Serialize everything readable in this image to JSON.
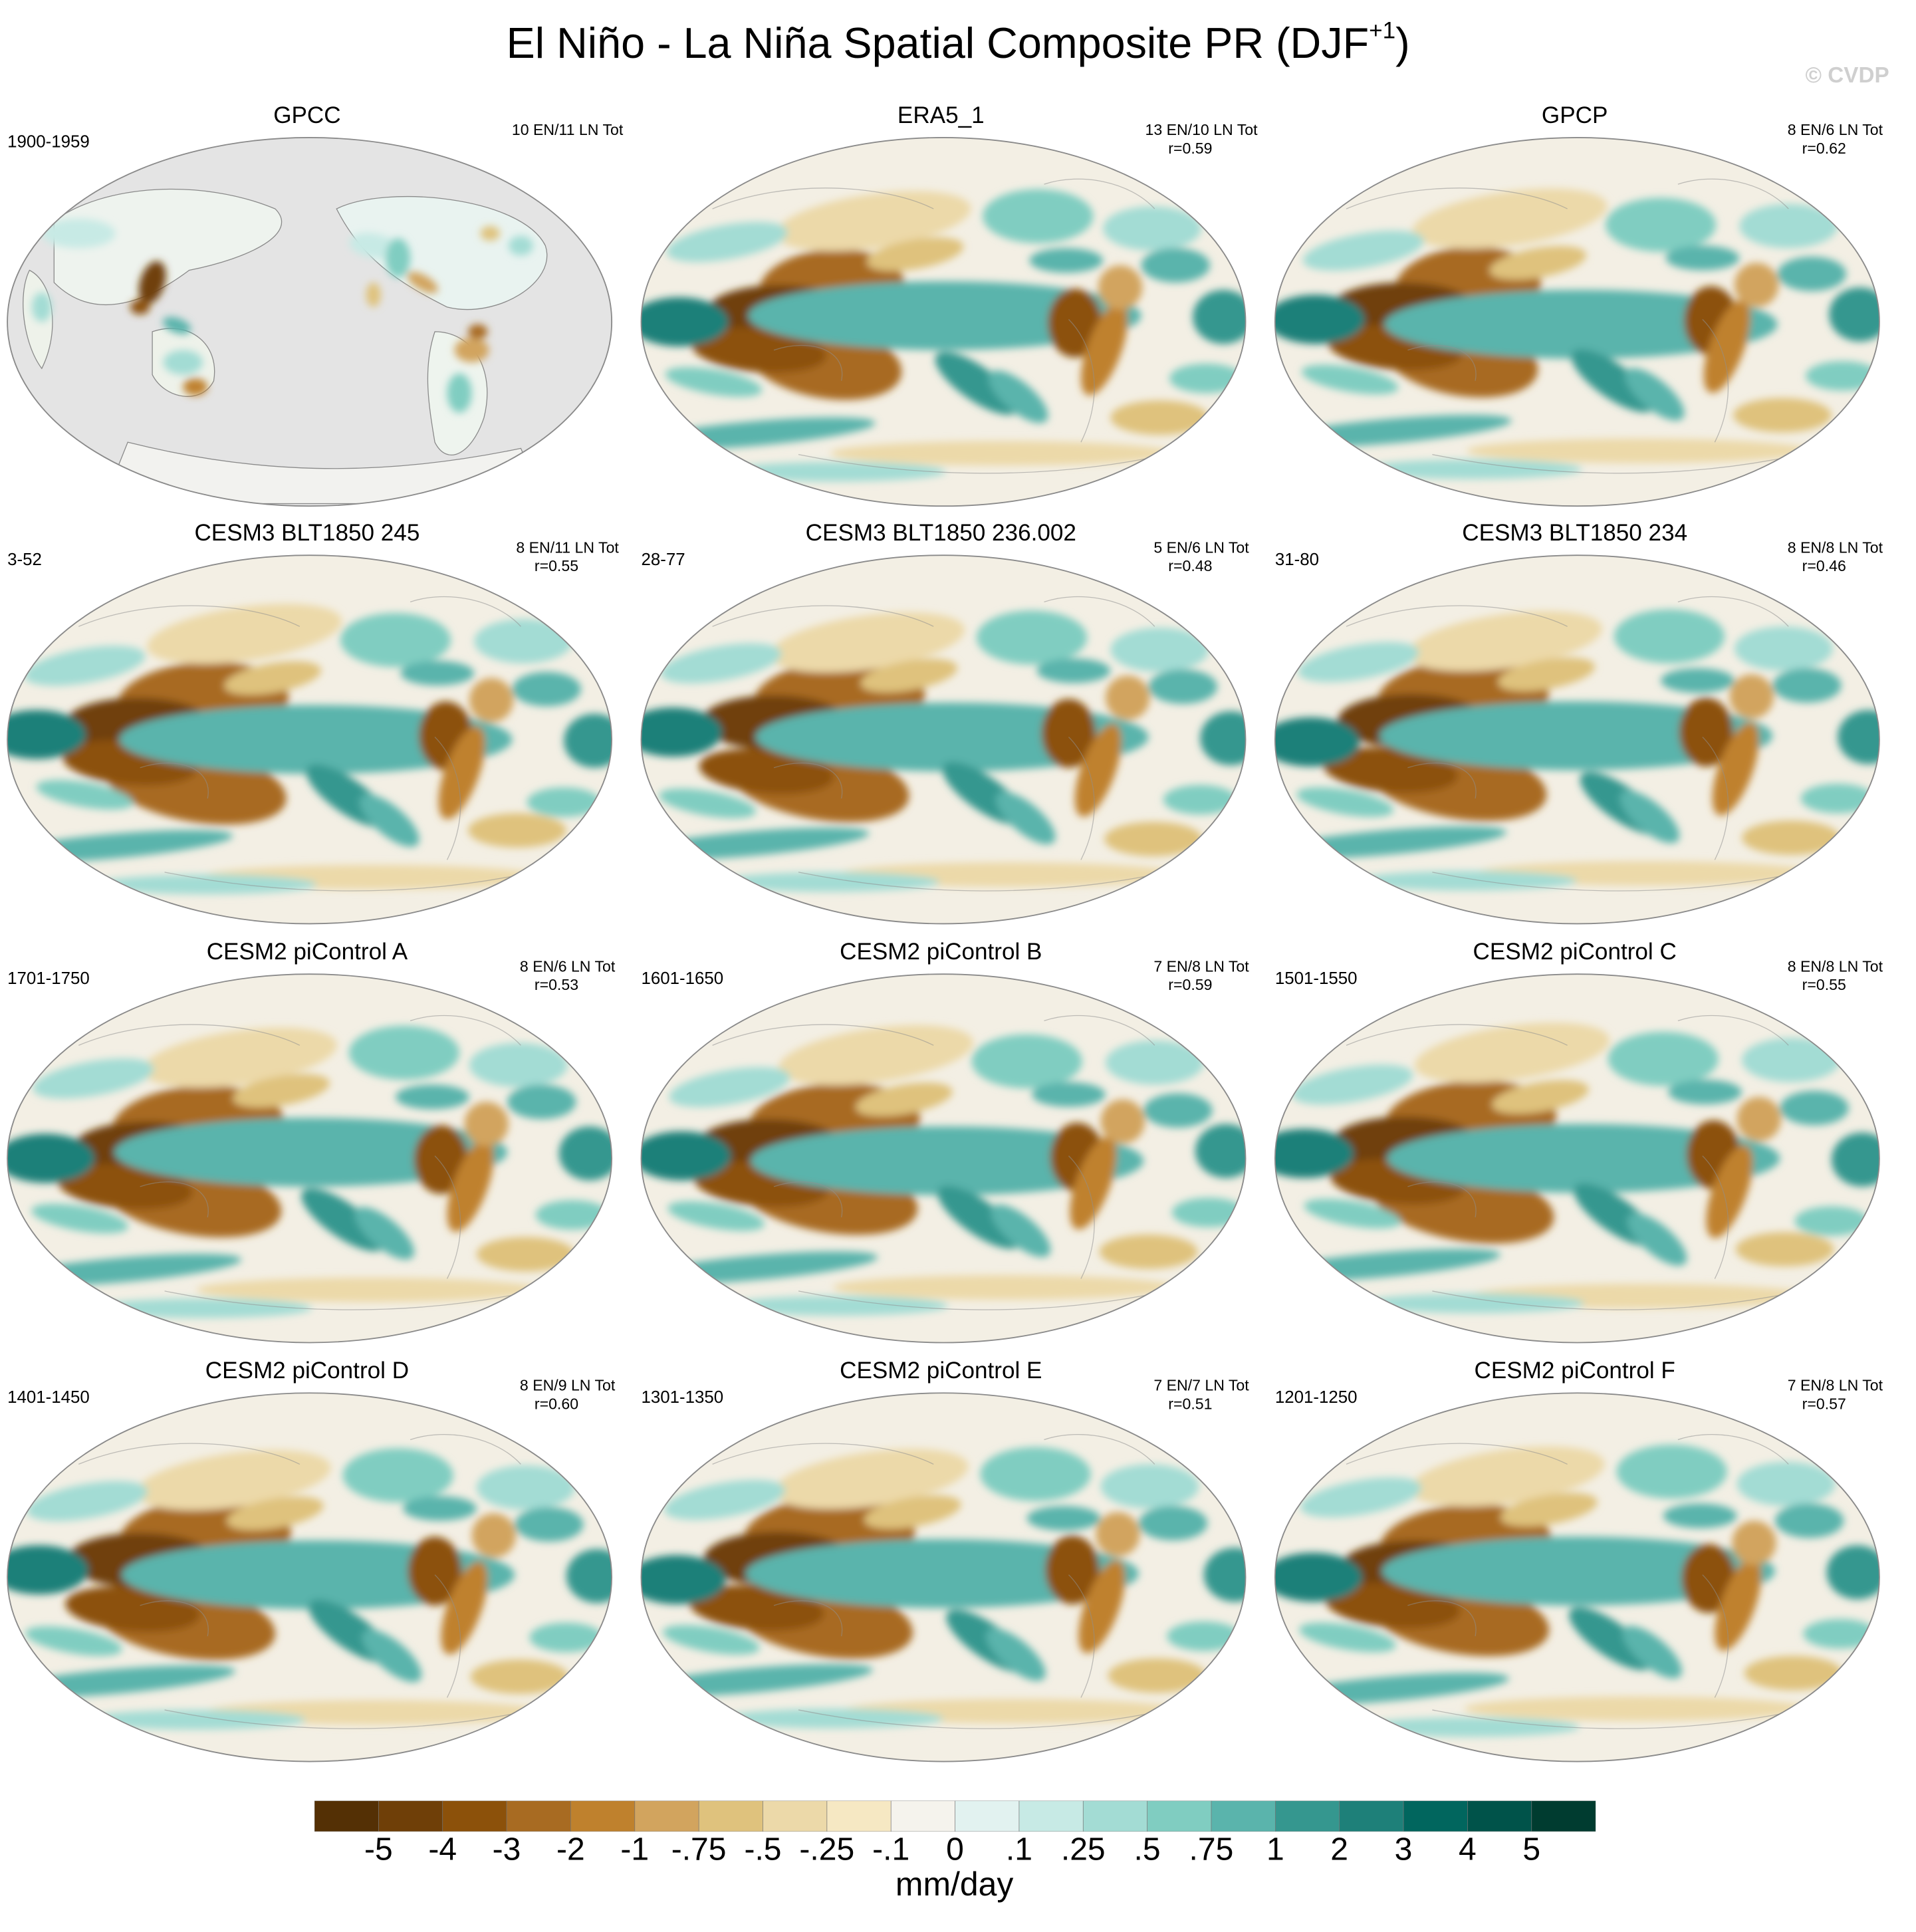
{
  "title": "El Niño - La Niña Spatial Composite PR (DJF",
  "title_sup": "+1",
  "title_close": ")",
  "copyright": "© CVDP",
  "panels": [
    {
      "title": "GPCC",
      "period": "1900-1959",
      "counts": "10 EN/11 LN Tot",
      "r": "",
      "map_variant": "obs-land"
    },
    {
      "title": "ERA5_1",
      "period": "",
      "counts": "13 EN/10 LN Tot",
      "r": "r=0.59",
      "map_variant": "obs"
    },
    {
      "title": "GPCP",
      "period": "",
      "counts": "8 EN/6 LN Tot",
      "r": "r=0.62",
      "map_variant": "obs"
    },
    {
      "title": "CESM3 BLT1850 245",
      "period": "3-52",
      "counts": "8 EN/11 LN Tot",
      "r": "r=0.55",
      "map_variant": "model"
    },
    {
      "title": "CESM3 BLT1850 236.002",
      "period": "28-77",
      "counts": "5 EN/6 LN Tot",
      "r": "r=0.48",
      "map_variant": "model"
    },
    {
      "title": "CESM3 BLT1850 234",
      "period": "31-80",
      "counts": "8 EN/8 LN Tot",
      "r": "r=0.46",
      "map_variant": "model"
    },
    {
      "title": "CESM2 piControl A",
      "period": "1701-1750",
      "counts": "8 EN/6 LN Tot",
      "r": "r=0.53",
      "map_variant": "model"
    },
    {
      "title": "CESM2 piControl B",
      "period": "1601-1650",
      "counts": "7 EN/8 LN Tot",
      "r": "r=0.59",
      "map_variant": "model"
    },
    {
      "title": "CESM2 piControl C",
      "period": "1501-1550",
      "counts": "8 EN/8 LN Tot",
      "r": "r=0.55",
      "map_variant": "model"
    },
    {
      "title": "CESM2 piControl D",
      "period": "1401-1450",
      "counts": "8 EN/9 LN Tot",
      "r": "r=0.60",
      "map_variant": "model"
    },
    {
      "title": "CESM2 piControl E",
      "period": "1301-1350",
      "counts": "7 EN/7 LN Tot",
      "r": "r=0.51",
      "map_variant": "model"
    },
    {
      "title": "CESM2 piControl F",
      "period": "1201-1250",
      "counts": "7 EN/8 LN Tot",
      "r": "r=0.57",
      "map_variant": "model"
    }
  ],
  "colorbar": {
    "labels": [
      "-5",
      "-4",
      "-3",
      "-2",
      "-1",
      "-.75",
      "-.5",
      "-.25",
      "-.1",
      "0",
      ".1",
      ".25",
      ".5",
      ".75",
      "1",
      "2",
      "3",
      "4",
      "5"
    ],
    "colors": [
      "#543005",
      "#6f3f08",
      "#8c510a",
      "#a86b22",
      "#bf812d",
      "#d2a45e",
      "#dfc27d",
      "#ecd9a9",
      "#f6e8c3",
      "#f5f3ed",
      "#e2f2f0",
      "#c7eae5",
      "#a3dcd4",
      "#80cdc1",
      "#5ab4ac",
      "#35978f",
      "#1e8079",
      "#01665e",
      "#00534a",
      "#003c30"
    ],
    "units": "mm/day"
  },
  "chart_data": {
    "type": "heatmap",
    "title": "El Niño - La Niña Spatial Composite PR (DJF+1)",
    "variable": "precipitation composite difference",
    "units": "mm/day",
    "contour_levels": [
      -5,
      -4,
      -3,
      -2,
      -1,
      -0.75,
      -0.5,
      -0.25,
      -0.1,
      0,
      0.1,
      0.25,
      0.5,
      0.75,
      1,
      2,
      3,
      4,
      5
    ],
    "panels": [
      {
        "name": "GPCC",
        "period": "1900-1959",
        "el_nino_events": 10,
        "la_nina_events": 11,
        "pattern_correlation": null
      },
      {
        "name": "ERA5_1",
        "el_nino_events": 13,
        "la_nina_events": 10,
        "pattern_correlation": 0.59
      },
      {
        "name": "GPCP",
        "el_nino_events": 8,
        "la_nina_events": 6,
        "pattern_correlation": 0.62
      },
      {
        "name": "CESM3 BLT1850 245",
        "period": "3-52",
        "el_nino_events": 8,
        "la_nina_events": 11,
        "pattern_correlation": 0.55
      },
      {
        "name": "CESM3 BLT1850 236.002",
        "period": "28-77",
        "el_nino_events": 5,
        "la_nina_events": 6,
        "pattern_correlation": 0.48
      },
      {
        "name": "CESM3 BLT1850 234",
        "period": "31-80",
        "el_nino_events": 8,
        "la_nina_events": 8,
        "pattern_correlation": 0.46
      },
      {
        "name": "CESM2 piControl A",
        "period": "1701-1750",
        "el_nino_events": 8,
        "la_nina_events": 6,
        "pattern_correlation": 0.53
      },
      {
        "name": "CESM2 piControl B",
        "period": "1601-1650",
        "el_nino_events": 7,
        "la_nina_events": 8,
        "pattern_correlation": 0.59
      },
      {
        "name": "CESM2 piControl C",
        "period": "1501-1550",
        "el_nino_events": 8,
        "la_nina_events": 8,
        "pattern_correlation": 0.55
      },
      {
        "name": "CESM2 piControl D",
        "period": "1401-1450",
        "el_nino_events": 8,
        "la_nina_events": 9,
        "pattern_correlation": 0.6
      },
      {
        "name": "CESM2 piControl E",
        "period": "1301-1350",
        "el_nino_events": 7,
        "la_nina_events": 7,
        "pattern_correlation": 0.51
      },
      {
        "name": "CESM2 piControl F",
        "period": "1201-1250",
        "el_nino_events": 7,
        "la_nina_events": 8,
        "pattern_correlation": 0.57
      }
    ]
  }
}
